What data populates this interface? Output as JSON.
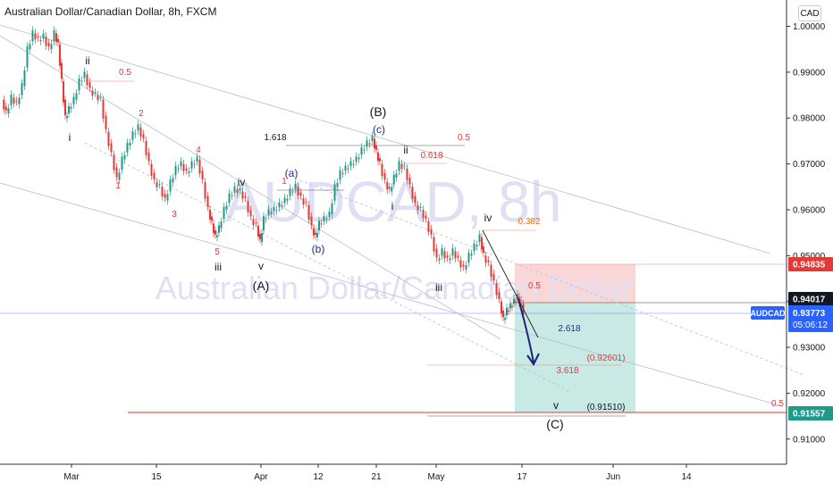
{
  "header": {
    "title": "Australian Dollar/Canadian Dollar, 8h, FXCM",
    "currency": "CAD"
  },
  "watermark": {
    "symbol": "AUDCAD, 8h",
    "name": "Australian Dollar/Canadian Dollar"
  },
  "colors": {
    "up": "#1e9a88",
    "down": "#e53935",
    "blue_label": "#1f2d8c",
    "fib_label": "#e53935",
    "fib_orange": "#e66a1a",
    "stop_zone": "#f8c9c9",
    "target_zone": "#bfe5df",
    "price_line": "#2962ff"
  },
  "chart_data": {
    "type": "candlestick",
    "symbol": "AUDCAD",
    "timeframe": "8h",
    "x_ticks": [
      "Mar",
      "15",
      "Apr",
      "12",
      "21",
      "May",
      "17",
      "Jun",
      "14"
    ],
    "y_ticks": [
      "1.00000",
      "0.99000",
      "0.98000",
      "0.97000",
      "0.96000",
      "0.95000",
      "0.94000",
      "0.93000",
      "0.92000",
      "0.91000"
    ],
    "ylim": [
      0.9035,
      1.0045
    ],
    "grid": false,
    "price_path": [
      [
        3,
        0.984
      ],
      [
        8,
        0.981
      ],
      [
        14,
        0.9845
      ],
      [
        20,
        0.983
      ],
      [
        26,
        0.987
      ],
      [
        32,
        0.995
      ],
      [
        38,
        0.9985
      ],
      [
        44,
        0.997
      ],
      [
        50,
        0.9978
      ],
      [
        56,
        0.995
      ],
      [
        62,
        0.9985
      ],
      [
        66,
        0.996
      ],
      [
        70,
        0.988
      ],
      [
        74,
        0.98
      ],
      [
        78,
        0.982
      ],
      [
        84,
        0.984
      ],
      [
        90,
        0.988
      ],
      [
        96,
        0.9895
      ],
      [
        102,
        0.986
      ],
      [
        108,
        0.985
      ],
      [
        114,
        0.984
      ],
      [
        120,
        0.977
      ],
      [
        126,
        0.972
      ],
      [
        132,
        0.9665
      ],
      [
        138,
        0.971
      ],
      [
        144,
        0.974
      ],
      [
        150,
        0.9765
      ],
      [
        156,
        0.978
      ],
      [
        162,
        0.975
      ],
      [
        168,
        0.97
      ],
      [
        174,
        0.966
      ],
      [
        180,
        0.965
      ],
      [
        186,
        0.962
      ],
      [
        192,
        0.966
      ],
      [
        198,
        0.969
      ],
      [
        204,
        0.97
      ],
      [
        210,
        0.968
      ],
      [
        216,
        0.97
      ],
      [
        222,
        0.971
      ],
      [
        228,
        0.966
      ],
      [
        234,
        0.96
      ],
      [
        238,
        0.957
      ],
      [
        242,
        0.954
      ],
      [
        246,
        0.956
      ],
      [
        252,
        0.96
      ],
      [
        258,
        0.963
      ],
      [
        264,
        0.9645
      ],
      [
        270,
        0.964
      ],
      [
        276,
        0.962
      ],
      [
        282,
        0.958
      ],
      [
        288,
        0.9565
      ],
      [
        292,
        0.953
      ],
      [
        296,
        0.958
      ],
      [
        302,
        0.9595
      ],
      [
        308,
        0.96
      ],
      [
        314,
        0.961
      ],
      [
        320,
        0.962
      ],
      [
        326,
        0.964
      ],
      [
        332,
        0.965
      ],
      [
        338,
        0.9625
      ],
      [
        344,
        0.961
      ],
      [
        350,
        0.956
      ],
      [
        354,
        0.954
      ],
      [
        358,
        0.957
      ],
      [
        364,
        0.958
      ],
      [
        370,
        0.959
      ],
      [
        376,
        0.965
      ],
      [
        382,
        0.968
      ],
      [
        388,
        0.969
      ],
      [
        394,
        0.97
      ],
      [
        400,
        0.971
      ],
      [
        406,
        0.973
      ],
      [
        412,
        0.9745
      ],
      [
        418,
        0.9755
      ],
      [
        422,
        0.9725
      ],
      [
        426,
        0.97
      ],
      [
        432,
        0.966
      ],
      [
        437,
        0.964
      ],
      [
        442,
        0.967
      ],
      [
        448,
        0.97
      ],
      [
        454,
        0.969
      ],
      [
        460,
        0.965
      ],
      [
        466,
        0.961
      ],
      [
        472,
        0.96
      ],
      [
        478,
        0.9575
      ],
      [
        484,
        0.954
      ],
      [
        490,
        0.949
      ],
      [
        496,
        0.951
      ],
      [
        502,
        0.949
      ],
      [
        508,
        0.951
      ],
      [
        514,
        0.949
      ],
      [
        520,
        0.947
      ],
      [
        526,
        0.95
      ],
      [
        532,
        0.952
      ],
      [
        538,
        0.954
      ],
      [
        542,
        0.95
      ],
      [
        548,
        0.948
      ],
      [
        554,
        0.944
      ],
      [
        560,
        0.94
      ],
      [
        564,
        0.936
      ],
      [
        568,
        0.938
      ],
      [
        572,
        0.939
      ],
      [
        576,
        0.94
      ],
      [
        580,
        0.941
      ],
      [
        584,
        0.9395
      ],
      [
        587,
        0.9377
      ]
    ],
    "current_price": "0.93773",
    "symbol_badge": "AUDCAD",
    "countdown": "05:06:12",
    "price_tags": {
      "stop": "0.94835",
      "entry": "0.94017",
      "target": "0.91557"
    },
    "wave_labels": [
      {
        "text": "ii",
        "x": 98,
        "y": 72
      },
      {
        "text": "0.5",
        "x": 140,
        "y": 84
      },
      {
        "text": "i",
        "x": 78,
        "y": 158
      },
      {
        "text": "2",
        "x": 158,
        "y": 130
      },
      {
        "text": "1",
        "x": 132,
        "y": 211
      },
      {
        "text": "4",
        "x": 222,
        "y": 171
      },
      {
        "text": "3",
        "x": 195,
        "y": 243
      },
      {
        "text": "iv",
        "x": 270,
        "y": 208
      },
      {
        "text": "5",
        "x": 243,
        "y": 285
      },
      {
        "text": "iii",
        "x": 244,
        "y": 303
      },
      {
        "text": "v",
        "x": 292,
        "y": 302
      },
      {
        "text": "(A)",
        "x": 292,
        "y": 325
      },
      {
        "text": "1",
        "x": 318,
        "y": 206
      },
      {
        "text": "(a)",
        "x": 326,
        "y": 198
      },
      {
        "text": "(b)",
        "x": 356,
        "y": 283
      },
      {
        "text": "(B)",
        "x": 423,
        "y": 130
      },
      {
        "text": "(c)",
        "x": 424,
        "y": 149
      },
      {
        "text": "1.618",
        "x": 308,
        "y": 157
      },
      {
        "text": "0.5",
        "x": 519,
        "y": 157
      },
      {
        "text": "ii",
        "x": 454,
        "y": 172
      },
      {
        "text": "0.618",
        "x": 483,
        "y": 177
      },
      {
        "text": "i",
        "x": 439,
        "y": 235
      },
      {
        "text": "iv",
        "x": 546,
        "y": 248
      },
      {
        "text": "0.382",
        "x": 592,
        "y": 251
      },
      {
        "text": "iii",
        "x": 491,
        "y": 326
      },
      {
        "text": "0.5",
        "x": 598,
        "y": 323
      },
      {
        "text": "2.618",
        "x": 637,
        "y": 371
      },
      {
        "text": "(0.92601)",
        "x": 678,
        "y": 404
      },
      {
        "text": "3.618",
        "x": 635,
        "y": 418
      },
      {
        "text": "v",
        "x": 622,
        "y": 458
      },
      {
        "text": "(0.91510)",
        "x": 678,
        "y": 459
      },
      {
        "text": "0.5",
        "x": 870,
        "y": 455
      },
      {
        "text": "(C)",
        "x": 621,
        "y": 480
      }
    ]
  }
}
